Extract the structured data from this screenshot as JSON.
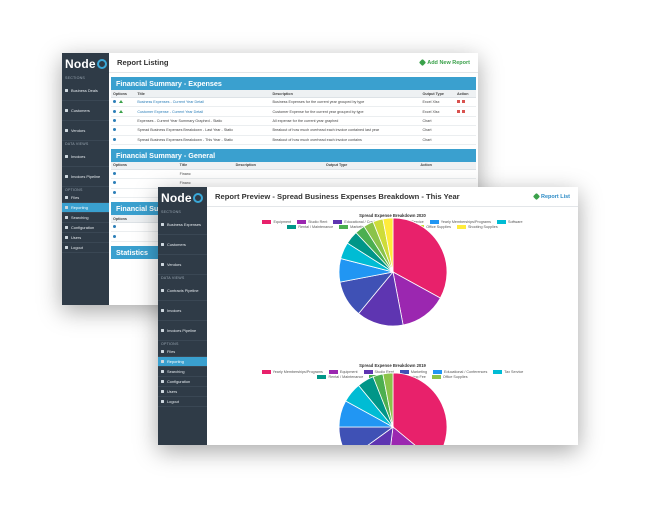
{
  "back": {
    "logo": "Node",
    "sidebar": {
      "sections_label": "SECTIONS",
      "data_views_label": "DATA VIEWS",
      "options_label": "OPTIONS",
      "items_top": [
        {
          "label": "Business Deals",
          "icon": "briefcase-icon"
        },
        {
          "label": "Customers",
          "icon": "user-icon"
        },
        {
          "label": "Vendors",
          "icon": "truck-icon"
        }
      ],
      "items_data": [
        {
          "label": "Invoices",
          "icon": "file-icon"
        },
        {
          "label": "Invoices Pipeline",
          "icon": "pipeline-icon"
        }
      ],
      "items_options": [
        {
          "label": "Files",
          "icon": "folder-icon"
        },
        {
          "label": "Reporting",
          "icon": "chart-icon",
          "active": true
        },
        {
          "label": "Searching",
          "icon": "search-icon"
        },
        {
          "label": "Configuration",
          "icon": "gear-icon"
        },
        {
          "label": "Users",
          "icon": "users-icon"
        },
        {
          "label": "Logout",
          "icon": "logout-icon"
        }
      ]
    },
    "title": "Report Listing",
    "add_link": "Add New Report",
    "columns": [
      "Options",
      "Title",
      "Description",
      "Output Type",
      "Action"
    ],
    "expenses_heading": "Financial Summary - Expenses",
    "expenses_rows": [
      {
        "title": "Business Expenses - Current Year Detail",
        "desc": "Business Expenses for the current year grouped by type",
        "type": "Excel Xlsx",
        "link": true
      },
      {
        "title": "Customer Expense - Current Year Detail",
        "desc": "Customer Expense for the current year grouped by type",
        "type": "Excel Xlsx",
        "link": true
      },
      {
        "title": "Expenses - Current Year Summary Graphed - Static",
        "desc": "All expense for the current year graphed",
        "type": "Chart",
        "link": false
      },
      {
        "title": "Spread Business Expenses Breakdown - Last Year - Static",
        "desc": "Breakout of how much overhead each invoice contained last year",
        "type": "Chart",
        "link": false
      },
      {
        "title": "Spread Business Expenses Breakdown - This Year - Static",
        "desc": "Breakout of how much overhead each invoice contains",
        "type": "Chart",
        "link": false
      }
    ],
    "general_heading": "Financial Summary - General",
    "general_rows": [
      {
        "title": "Financ"
      },
      {
        "title": "Financ"
      },
      {
        "title": "Financ"
      }
    ],
    "third_heading": "Financial Su",
    "third_rows": [
      {
        "title": "All Pay"
      },
      {
        "title": "Remain"
      }
    ],
    "stats_heading": "Statistics"
  },
  "front": {
    "logo": "Node",
    "sidebar": {
      "sections_label": "SECTIONS",
      "data_views_label": "DATA VIEWS",
      "options_label": "OPTIONS",
      "items_top": [
        {
          "label": "Business Expenses",
          "icon": "briefcase-icon"
        },
        {
          "label": "Customers",
          "icon": "user-icon"
        },
        {
          "label": "Vendors",
          "icon": "truck-icon"
        }
      ],
      "items_data": [
        {
          "label": "Contracts Pipeline",
          "icon": "pipeline-icon"
        },
        {
          "label": "Invoices",
          "icon": "file-icon"
        },
        {
          "label": "Invoices Pipeline",
          "icon": "pipeline-icon"
        }
      ],
      "items_options": [
        {
          "label": "Files",
          "icon": "folder-icon"
        },
        {
          "label": "Reporting",
          "icon": "chart-icon",
          "active": true
        },
        {
          "label": "Searching",
          "icon": "search-icon"
        },
        {
          "label": "Configuration",
          "icon": "gear-icon"
        },
        {
          "label": "Users",
          "icon": "users-icon"
        },
        {
          "label": "Logout",
          "icon": "logout-icon"
        }
      ]
    },
    "title": "Report Preview - Spread Business Expenses Breakdown - This Year",
    "report_list_link": "Report List"
  },
  "chart_data": [
    {
      "type": "pie",
      "title": "Spread Expense Breakdown 2020",
      "legend_placement": "top",
      "slices": [
        {
          "name": "Equipment",
          "value": 33,
          "color": "#e8216b"
        },
        {
          "name": "Studio Rent",
          "value": 14,
          "color": "#9b27b0"
        },
        {
          "name": "Educational / Conferences",
          "value": 14,
          "color": "#5e35b1"
        },
        {
          "name": "Tax Service",
          "value": 11,
          "color": "#3f51b5"
        },
        {
          "name": "Yearly Memberships/Programs",
          "value": 7,
          "color": "#2196f3"
        },
        {
          "name": "Software",
          "value": 5,
          "color": "#00bcd4"
        },
        {
          "name": "Rental / Maintenance",
          "value": 4,
          "color": "#009688"
        },
        {
          "name": "Marketing",
          "value": 3,
          "color": "#4caf50"
        },
        {
          "name": "Studio Samples",
          "value": 3,
          "color": "#8bc34a"
        },
        {
          "name": "Office Supplies",
          "value": 3,
          "color": "#cddc39"
        },
        {
          "name": "Shooting Supplies",
          "value": 3,
          "color": "#ffeb3b"
        }
      ]
    },
    {
      "type": "pie",
      "title": "Spread Expense Breakdown 2019",
      "legend_placement": "top",
      "slices": [
        {
          "name": "Yearly Memberships/Programs",
          "value": 36,
          "color": "#e8216b"
        },
        {
          "name": "Equipment",
          "value": 16,
          "color": "#9b27b0"
        },
        {
          "name": "Studio Rent",
          "value": 13,
          "color": "#5e35b1"
        },
        {
          "name": "Marketing",
          "value": 10,
          "color": "#3f51b5"
        },
        {
          "name": "Educational / Conferences",
          "value": 8,
          "color": "#2196f3"
        },
        {
          "name": "Tax Service",
          "value": 6,
          "color": "#00bcd4"
        },
        {
          "name": "Rental / Maintenance",
          "value": 5,
          "color": "#009688"
        },
        {
          "name": "Credit Card Processing Fee",
          "value": 3,
          "color": "#4caf50"
        },
        {
          "name": "Office Supplies",
          "value": 3,
          "color": "#8bc34a"
        }
      ]
    }
  ]
}
